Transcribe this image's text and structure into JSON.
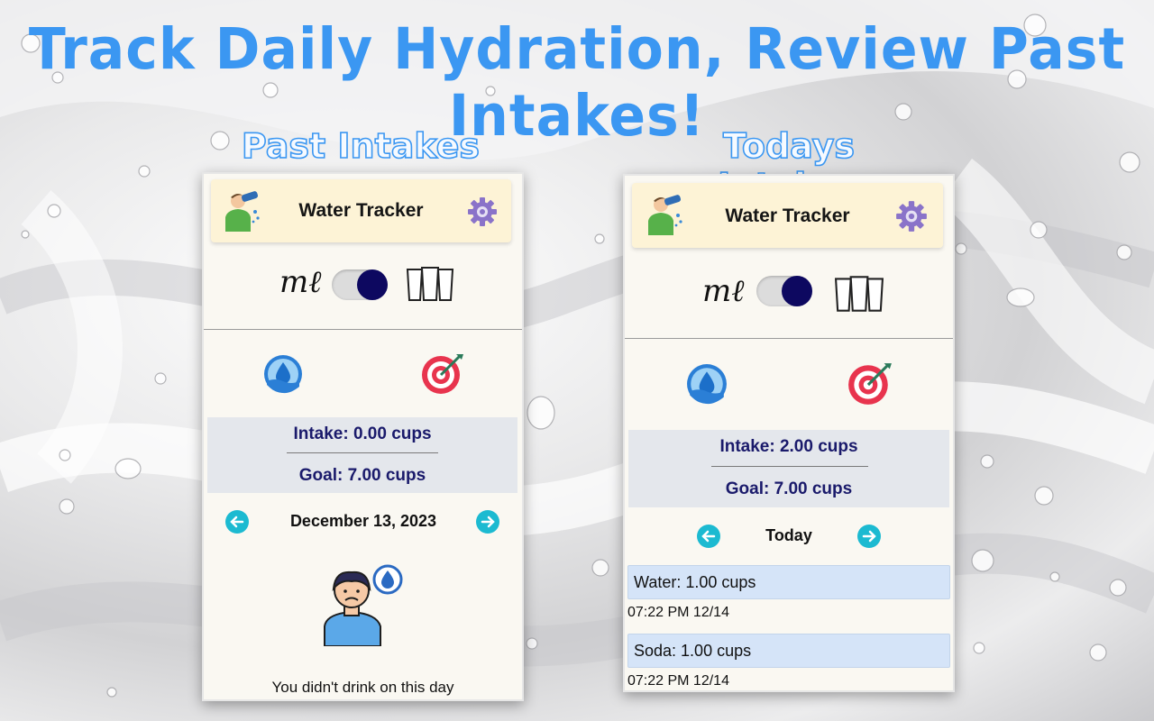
{
  "banner": {
    "headline": "Track Daily Hydration, Review Past Intakes!",
    "left_caption": "Past Intakes",
    "right_caption": "Todays Intakes"
  },
  "colors": {
    "accent": "#3b97f2",
    "header_bg": "#fdf3d6",
    "summary_bg": "#e4e7ec",
    "entry_bg": "#d5e4f8",
    "toggle_knob": "#0d0860",
    "nav_arrow": "#1cbad1",
    "goal_target": "#e8344e"
  },
  "past_screen": {
    "app_title": "Water Tracker",
    "unit_ml": "mℓ",
    "unit_toggle_on": true,
    "intake": "Intake: 0.00 cups",
    "goal": "Goal: 7.00 cups",
    "date": "December 13, 2023",
    "empty_message": "You didn't drink on this day",
    "icons": [
      "drinking-person-icon",
      "settings-gear-icon",
      "cups-icon",
      "water-drop-icon",
      "target-icon",
      "arrow-left-icon",
      "arrow-right-icon",
      "sad-person-icon"
    ]
  },
  "today_screen": {
    "app_title": "Water Tracker",
    "unit_ml": "mℓ",
    "unit_toggle_on": true,
    "intake": "Intake: 2.00 cups",
    "goal": "Goal: 7.00 cups",
    "date": "Today",
    "entries": [
      {
        "label": "Water: 1.00 cups",
        "time": "07:22 PM 12/14"
      },
      {
        "label": "Soda: 1.00 cups",
        "time": "07:22 PM 12/14"
      }
    ]
  }
}
